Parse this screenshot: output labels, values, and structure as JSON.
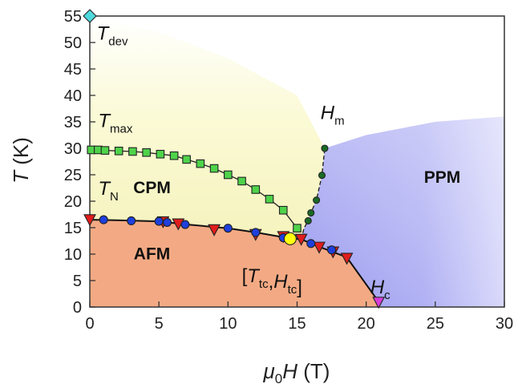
{
  "chart_data": {
    "type": "scatter",
    "xlabel": {
      "symbol": "μ",
      "sub": "0",
      "var": "H",
      "unit": " (T)"
    },
    "ylabel": {
      "var": "T",
      "unit": " (K)"
    },
    "xlim": [
      0,
      30
    ],
    "ylim": [
      0,
      55
    ],
    "xticks": [
      "0",
      "5",
      "10",
      "15",
      "20",
      "25",
      "30"
    ],
    "yticks": [
      "0",
      "5",
      "10",
      "15",
      "20",
      "25",
      "30",
      "35",
      "40",
      "45",
      "50",
      "55"
    ],
    "grid": false,
    "legend": "none",
    "regions": [
      {
        "name": "CPM",
        "color": "#f8f6c4",
        "label_at": [
          4.5,
          21.5
        ]
      },
      {
        "name": "PPM",
        "color": "#a7a7f2",
        "label_at": [
          25.5,
          23.5
        ]
      },
      {
        "name": "AFM",
        "color": "#f3aa84",
        "label_at": [
          4.5,
          9.0
        ]
      }
    ],
    "series": [
      {
        "marker": "square",
        "color": "#4fd34a",
        "points": [
          [
            0.1,
            29.7
          ],
          [
            0.6,
            29.7
          ],
          [
            1.1,
            29.6
          ],
          [
            2.1,
            29.5
          ],
          [
            3.1,
            29.4
          ],
          [
            4.1,
            29.2
          ],
          [
            5.1,
            28.9
          ],
          [
            6.1,
            28.6
          ],
          [
            7.0,
            27.9
          ],
          [
            8.0,
            27.1
          ],
          [
            9.0,
            26.2
          ],
          [
            10.0,
            25.0
          ],
          [
            11.0,
            23.8
          ],
          [
            12.0,
            22.2
          ],
          [
            13.0,
            20.4
          ],
          [
            14.0,
            18.3
          ],
          [
            15.0,
            14.9
          ]
        ]
      },
      {
        "marker": "circle",
        "color": "#1a6a26",
        "points": [
          [
            15.8,
            16.3
          ],
          [
            16.0,
            17.8
          ],
          [
            16.4,
            20.2
          ],
          [
            16.8,
            24.9
          ],
          [
            17.0,
            30.0
          ]
        ]
      },
      {
        "marker": "triangle-down",
        "color": "#e01d1d",
        "points": [
          [
            0.0,
            16.5
          ],
          [
            5.3,
            16.1
          ],
          [
            6.4,
            15.7
          ],
          [
            9.0,
            14.6
          ],
          [
            12.0,
            13.7
          ],
          [
            14.0,
            13.3
          ],
          [
            15.3,
            12.8
          ],
          [
            16.6,
            11.3
          ],
          [
            17.6,
            10.4
          ],
          [
            18.6,
            9.2
          ]
        ]
      },
      {
        "marker": "circle",
        "color": "#1e3fdc",
        "points": [
          [
            1.0,
            16.5
          ],
          [
            3.0,
            16.3
          ],
          [
            5.0,
            16.2
          ],
          [
            5.6,
            16.0
          ],
          [
            6.9,
            15.6
          ],
          [
            10.0,
            14.9
          ],
          [
            12.0,
            14.1
          ],
          [
            14.0,
            13.1
          ],
          [
            16.0,
            12.0
          ],
          [
            17.5,
            10.8
          ]
        ]
      }
    ],
    "special_points": [
      {
        "label": "T_dev",
        "x": 0.0,
        "y": 55.0,
        "marker": "diamond",
        "color": "#4fd9dc"
      },
      {
        "label": "T_tc,H_tc",
        "x": 14.5,
        "y": 12.9,
        "marker": "circle",
        "color": "#ffff10"
      },
      {
        "label": "H_c",
        "x": 20.9,
        "y": 0.9,
        "marker": "triangle-down",
        "color": "#d93cd8"
      }
    ],
    "annotations": [
      {
        "main": "T",
        "sub": "dev",
        "at": [
          0.5,
          50.5
        ]
      },
      {
        "main": "T",
        "sub": "max",
        "at": [
          0.6,
          34.0
        ]
      },
      {
        "main": "T",
        "sub": "N",
        "at": [
          0.6,
          21.2
        ]
      },
      {
        "main": "H",
        "sub": "m",
        "at": [
          16.7,
          35.5
        ]
      },
      {
        "main": "[T",
        "sub": "tc",
        "main2": ",H",
        "sub2": "tc",
        "main3": "]",
        "at": [
          11.0,
          4.7
        ]
      },
      {
        "main": "H",
        "sub": "c",
        "at": [
          20.3,
          2.6
        ]
      }
    ]
  }
}
